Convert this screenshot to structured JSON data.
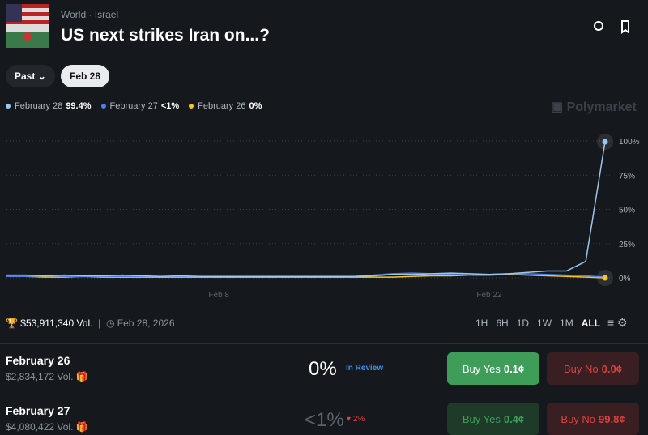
{
  "header": {
    "breadcrumb": [
      "World",
      "Israel"
    ],
    "title": "US next strikes Iran on...?"
  },
  "filters": [
    "Past",
    "Feb 28"
  ],
  "brand": "Polymarket",
  "chart_data": {
    "type": "line",
    "categories": [
      null,
      null,
      null,
      null,
      null,
      null,
      null,
      null,
      null,
      null,
      null,
      "Feb 8",
      null,
      null,
      null,
      null,
      null,
      null,
      null,
      null,
      null,
      null,
      null,
      null,
      null,
      "Feb 22",
      null,
      null,
      null,
      null,
      null,
      null
    ],
    "series": [
      {
        "name": "February 28",
        "legend_value": "99.4%",
        "color": "#9ec5ee",
        "values": [
          2,
          2,
          1.5,
          2,
          1.5,
          1.5,
          2,
          1.5,
          1,
          1.5,
          1,
          1,
          1,
          1,
          1,
          1,
          1,
          1,
          1,
          1.5,
          2.5,
          2.5,
          3,
          3.5,
          3,
          2.5,
          3,
          4,
          5,
          5,
          12,
          99.4
        ]
      },
      {
        "name": "February 27",
        "legend_value": "<1%",
        "color": "#4f7fe0",
        "values": [
          1,
          1,
          1.5,
          1,
          1,
          1,
          1,
          1,
          1,
          1,
          1,
          1,
          1,
          1,
          1,
          1,
          1,
          1,
          1,
          2,
          3,
          3.5,
          3,
          2.5,
          2,
          2.5,
          3,
          3,
          2.5,
          2,
          1.5,
          0.5
        ]
      },
      {
        "name": "February 26",
        "legend_value": "0%",
        "color": "#f5c623",
        "values": [
          1,
          1,
          0.5,
          0.5,
          1,
          0.5,
          0.5,
          0.5,
          0.5,
          0.5,
          0.5,
          0.5,
          0.5,
          0.5,
          0.5,
          0.5,
          0.5,
          0.5,
          0.5,
          0.5,
          0.5,
          1,
          1.5,
          1.5,
          2,
          2,
          2.5,
          2,
          1.5,
          1,
          0.5,
          0
        ]
      }
    ],
    "ylim": [
      0,
      100
    ],
    "yticks": [
      {
        "value": 0,
        "label": "0%"
      },
      {
        "value": 25,
        "label": "25%"
      },
      {
        "value": 50,
        "label": "50%"
      },
      {
        "value": 75,
        "label": "75%"
      },
      {
        "value": 100,
        "label": "100%"
      }
    ],
    "grid": true
  },
  "stats": {
    "volume": "$53,911,340 Vol.",
    "end_date": "Feb 28, 2026"
  },
  "ranges": [
    "1H",
    "6H",
    "1D",
    "1W",
    "1M",
    "ALL"
  ],
  "rows": [
    {
      "name": "February 26",
      "volume": "$2,834,172 Vol.",
      "chance": "0%",
      "status": "In Review",
      "buy_yes": "Buy Yes",
      "yes_price": "0.1¢",
      "buy_no": "Buy No",
      "no_price": "0.0¢"
    },
    {
      "name": "February 27",
      "volume": "$4,080,422 Vol.",
      "chance": "<1%",
      "change": "2%",
      "buy_yes": "Buy Yes",
      "yes_price": "0.4¢",
      "buy_no": "Buy No",
      "no_price": "99.8¢"
    }
  ]
}
